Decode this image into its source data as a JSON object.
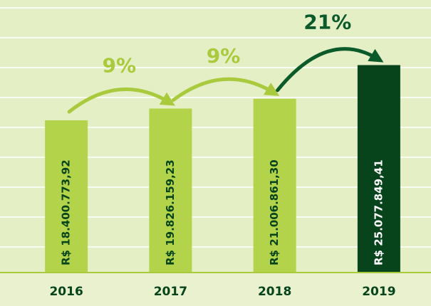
{
  "chart_data": {
    "type": "bar",
    "categories": [
      "2016",
      "2017",
      "2018",
      "2019"
    ],
    "values": [
      18400773.92,
      19826159.23,
      21006861.3,
      25077849.41
    ],
    "value_labels": [
      "R$ 18.400.773,92",
      "R$ 19.826.159,23",
      "R$ 21.006.861,30",
      "R$ 25.077.849,41"
    ],
    "colors": [
      "#b3d34a",
      "#b3d34a",
      "#b3d34a",
      "#07441c"
    ],
    "label_colors": [
      "#07441c",
      "#07441c",
      "#07441c",
      "#ffffff"
    ],
    "ylim": [
      0,
      32000000
    ],
    "annotations": [
      {
        "text": "9%",
        "color": "#a9ca3d"
      },
      {
        "text": "9%",
        "color": "#a9ca3d"
      },
      {
        "text": "21%",
        "color": "#0b5a2a"
      }
    ]
  }
}
